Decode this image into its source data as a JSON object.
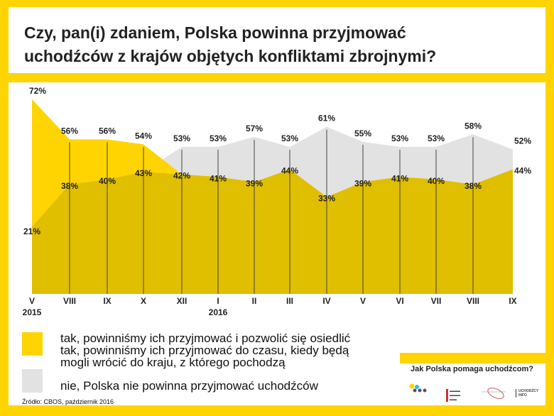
{
  "title": "Czy, pan(i) zdaniem, Polska powinna przyjmować uchodźców z krajów objętych konfliktami zbrojnymi?",
  "title_lines": [
    "Czy, pan(i) zdaniem, Polska powinna przyjmować",
    "uchodźców z krajów objętych konfliktami zbrojnymi?"
  ],
  "chart_data": {
    "type": "area",
    "categories": [
      "V",
      "VIII",
      "IX",
      "X",
      "XII",
      "I",
      "II",
      "III",
      "IV",
      "V",
      "VI",
      "VII",
      "VIII",
      "IX"
    ],
    "year_labels": [
      {
        "index": 0,
        "label": "2015"
      },
      {
        "index": 5,
        "label": "2016"
      }
    ],
    "series": [
      {
        "name": "tak, powinniśmy ich przyjmować i pozwolić się osiedlić / tak, powinniśmy ich przyjmować do czasu, kiedy będą mogli wrócić do kraju, z którego pochodzą",
        "color": "#FFD400",
        "values": [
          72,
          56,
          56,
          54,
          42,
          41,
          39,
          44,
          33,
          39,
          41,
          40,
          38,
          44
        ]
      },
      {
        "name": "nie, Polska nie powinna przyjmować uchodźców",
        "color": "#E2E2E2",
        "values": [
          21,
          38,
          40,
          43,
          53,
          53,
          57,
          53,
          61,
          55,
          53,
          53,
          58,
          52
        ]
      }
    ],
    "overlap_color": "#E0BE00",
    "unit": "%",
    "grid": "vertical lines at each category"
  },
  "legend": {
    "items": [
      {
        "lines": [
          "tak, powinniśmy ich przyjmować i pozwolić się osiedlić",
          "tak, powinniśmy ich przyjmować do czasu, kiedy będą",
          "mogli wrócić do kraju, z którego pochodzą"
        ],
        "color": "#FFD400"
      },
      {
        "lines": [
          "nie, Polska nie powinna przyjmować uchodźców"
        ],
        "color": "#E2E2E2"
      }
    ]
  },
  "source": "Źródło: CBOS, październik 2016",
  "partners": {
    "title": "Jak Polska pomaga uchodźcom?",
    "logos": [
      "Masz Prawo Wiedzieć",
      "Stowarzyszenie Interwencji Prawnej",
      "Fundacja",
      "UCHODŹCY INFO"
    ]
  }
}
